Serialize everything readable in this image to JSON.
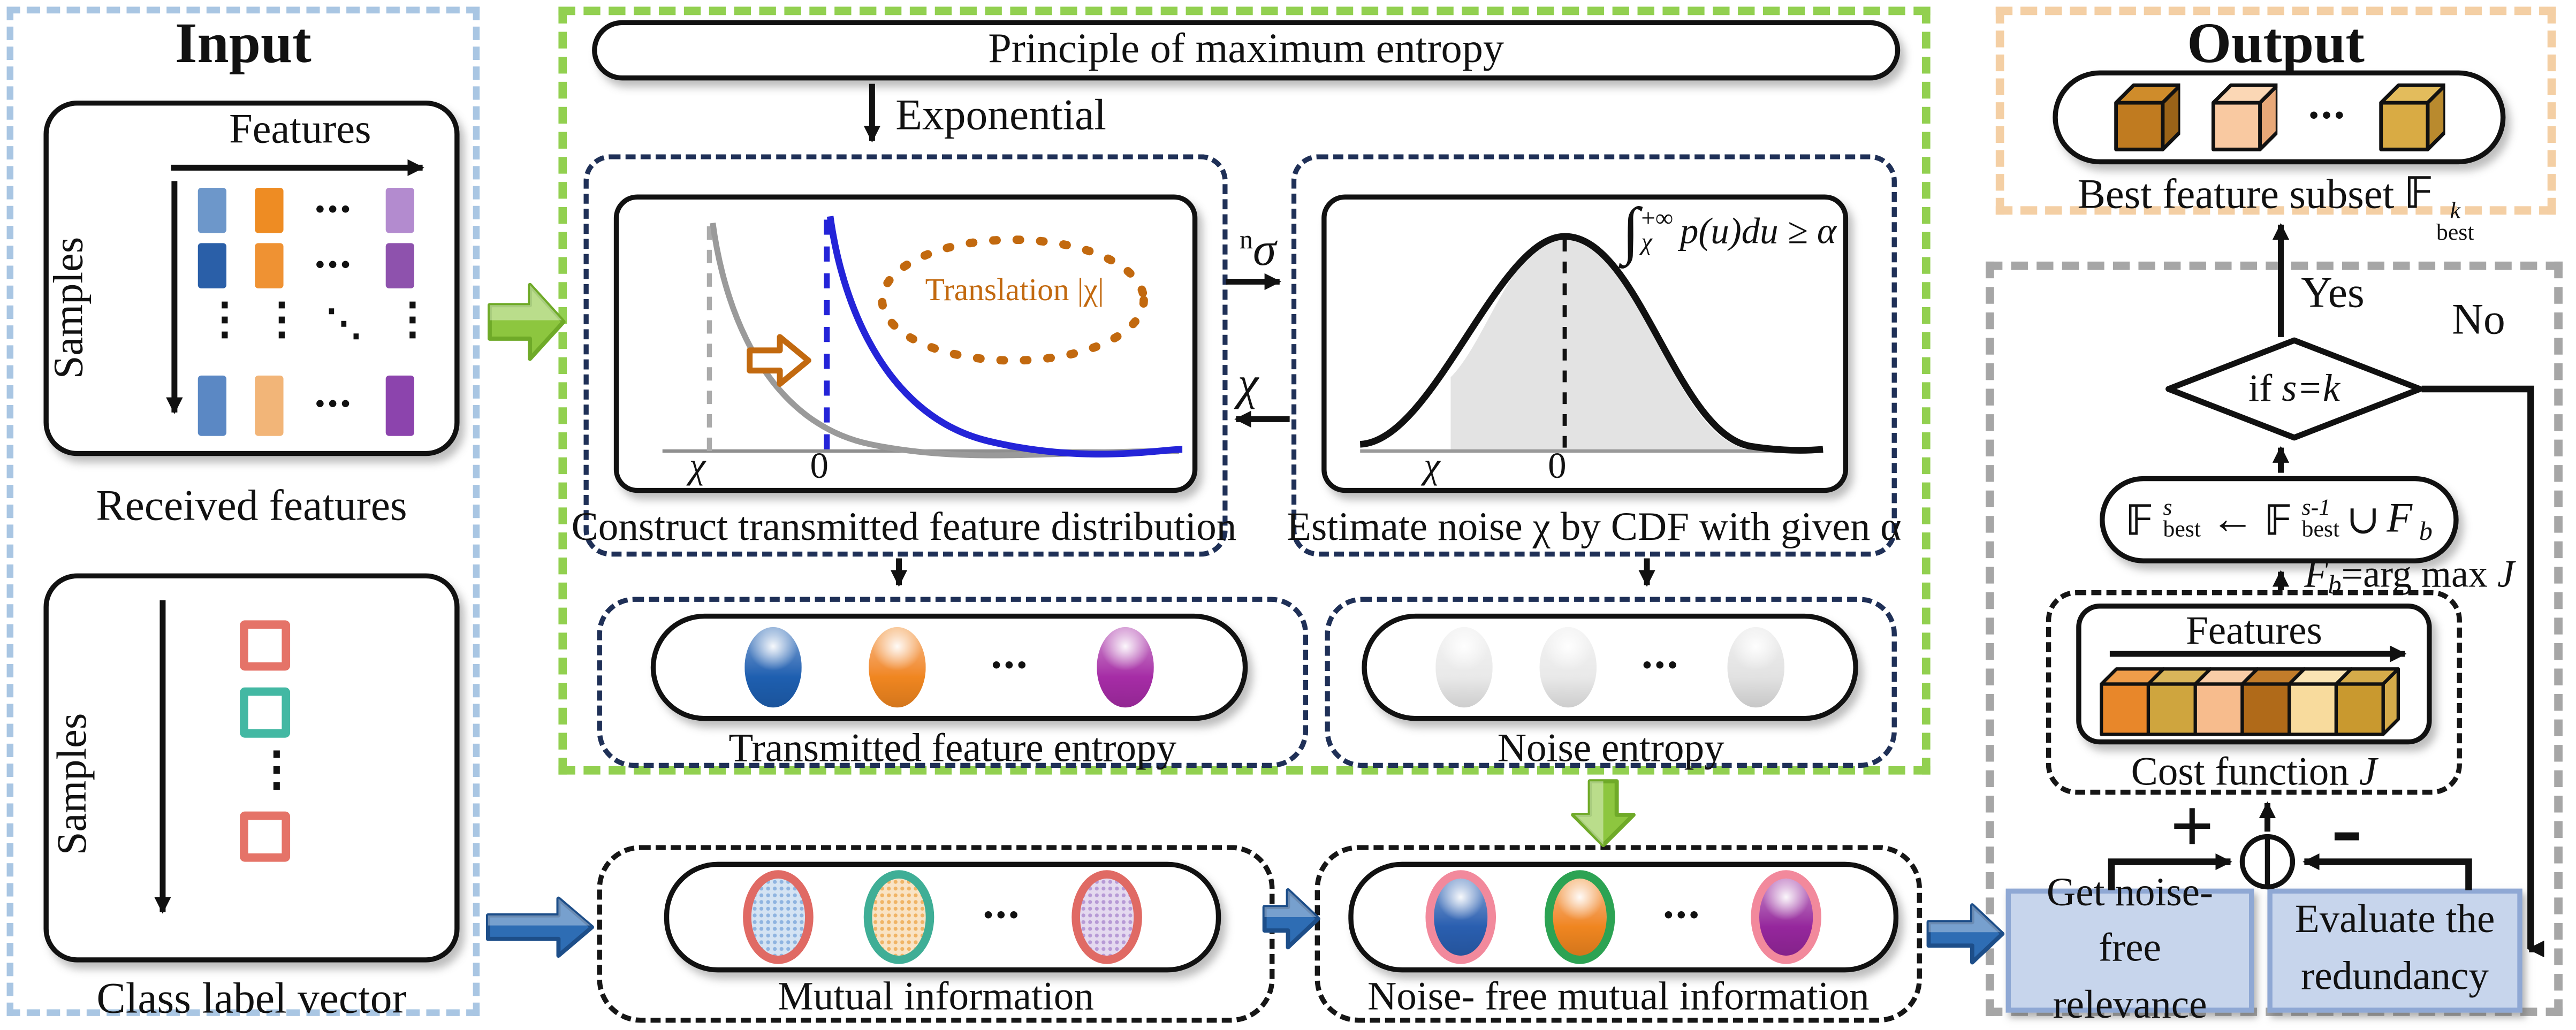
{
  "symbols": {
    "hdots": "•••",
    "vdots": "⋮",
    "ddots": "⋱"
  },
  "colors": {
    "input_border": "#a9c6e3",
    "module_border": "#92d050",
    "navy_border": "#1f3057",
    "output_border": "#f4cfa4",
    "panel_border": "#a6a6a6",
    "process_fill": "#c7d5ec",
    "process_border": "#8fa8d4",
    "green_arrow": "#8dc63f",
    "green_arrow_dark": "#6faa28",
    "blue_arrow": "#2e6db4",
    "blue_arrow_dark": "#1d4e89",
    "exp_curve_old": "#9a9a9a",
    "exp_curve_new": "#2424d8",
    "translation_accent": "#c2690f"
  },
  "input": {
    "title": "Input",
    "received": {
      "features_label": "Features",
      "samples_label": "Samples",
      "caption": "Received  features",
      "matrix": {
        "row1": [
          "#6d97ca",
          "#ee8c23",
          "#b38bcf"
        ],
        "row2": [
          "#2a5fa8",
          "#ef9233",
          "#8e52ad"
        ],
        "row3": [
          "#5b88c4",
          "#f2b578",
          "#8c44ad"
        ]
      }
    },
    "class_vector": {
      "samples_label": "Samples",
      "caption": "Class label vector",
      "squares": [
        "#e57368",
        "#43b8a3",
        "#e57368"
      ]
    }
  },
  "module": {
    "header": "Principle of  maximum entropy",
    "exponential_label": "Exponential",
    "sigma_sup": "n",
    "sigma": "σ",
    "chi": "χ",
    "construct": {
      "caption": "Construct transmitted  feature distribution",
      "translation_label": "Translation |χ|",
      "chi_tick": "χ",
      "zero_tick": "0"
    },
    "estimate": {
      "caption": "Estimate noise χ by CDF with given α",
      "integral": "∫",
      "upper": "+∞",
      "lower": "χ",
      "body": "p(u)du ≥ α",
      "chi_tick": "χ",
      "zero_tick": "0"
    },
    "transmitted": {
      "caption": "Transmitted  feature entropy",
      "items": [
        {
          "fill": "#1e5fb0"
        },
        {
          "fill": "#f08620"
        },
        {
          "fill": "#a62ca6"
        }
      ]
    },
    "noise": {
      "caption": "Noise entropy",
      "items": [
        {
          "fill": "#e9e9e9"
        },
        {
          "fill": "#e9e9e9"
        },
        {
          "fill": "#e2e2e2"
        }
      ]
    }
  },
  "mi": {
    "caption": "Mutual information",
    "items": [
      {
        "outline": "#e06a64",
        "fill": "#8fb4e0",
        "dotted": true
      },
      {
        "outline": "#3fae96",
        "fill": "#f0b465",
        "dotted": true
      },
      {
        "outline": "#e06a64",
        "fill": "#b79ad6",
        "dotted": true
      }
    ]
  },
  "nfmi": {
    "caption": "Noise- free mutual information",
    "items": [
      {
        "outline": "#f2899c",
        "fill": "#2a5fb0",
        "glossy": true
      },
      {
        "outline": "#2ca353",
        "fill": "#f08620",
        "glossy": true
      },
      {
        "outline": "#f2899c",
        "fill": "#96279d",
        "glossy": true
      }
    ]
  },
  "output": {
    "title": "Output",
    "caption_text": "Best  feature subset ",
    "caption_F": "𝔽",
    "caption_sup": "k",
    "caption_sub": "best",
    "cubes": [
      {
        "front": "#c07b20",
        "top": "#cf8c2b",
        "side": "#9a6318"
      },
      {
        "front": "#f9c9a1",
        "top": "#fbd7b5",
        "side": "#e8a878"
      },
      {
        "front": "#d9ab44",
        "top": "#e3bc5c",
        "side": "#b98a2e"
      }
    ]
  },
  "selector": {
    "yes": "Yes",
    "no": "No",
    "if_prefix": "if ",
    "condition": "s=k",
    "update": {
      "F1": "𝔽",
      "sup1": "s",
      "sub1": "best",
      "assign": "←",
      "F2": "𝔽",
      "sup2": "s-1",
      "sub2": "best",
      "union": "∪",
      "F3": "F",
      "sub3": "b"
    },
    "argmax": {
      "F": "F",
      "sub": "b",
      "mid": "=arg max ",
      "J": "J"
    },
    "cost": {
      "features_label": "Features",
      "caption_text": "Cost function ",
      "caption_J": "J",
      "bars": [
        {
          "front": "#e8872a",
          "top": "#ef9d4a"
        },
        {
          "front": "#cfa53e",
          "top": "#d9b55a"
        },
        {
          "front": "#f7bc8d",
          "top": "#f9cda7"
        },
        {
          "front": "#b06a19",
          "top": "#c27c2a"
        },
        {
          "front": "#f8db9d",
          "top": "#fae4b4"
        },
        {
          "front": "#c9992f",
          "top": "#d5ab4a"
        }
      ]
    },
    "plus": "+",
    "minus": "-",
    "relevance": "Get noise- free relevance",
    "redundancy": "Evaluate the redundancy"
  }
}
